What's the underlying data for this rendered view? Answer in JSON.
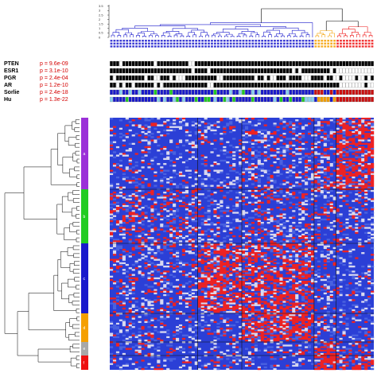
{
  "top_axis": {
    "ticks": [
      "0",
      "0.5",
      "1",
      "1.5",
      "2",
      "2.5",
      "3",
      "3.5"
    ]
  },
  "tracks": [
    {
      "name": "PTEN",
      "p": "p = 9.6e-09"
    },
    {
      "name": "ESR1",
      "p": "p = 3.1e-10"
    },
    {
      "name": "PGR",
      "p": "p = 2.4e-04"
    },
    {
      "name": "AR",
      "p": "p = 1.2e-10"
    },
    {
      "name": "Sorlie",
      "p": "p = 2.4e-18"
    },
    {
      "name": "Hu",
      "p": "p = 1.3e-22"
    }
  ],
  "gene_clusters": [
    {
      "label": "a",
      "color": "#9b30d8"
    },
    {
      "label": "b",
      "color": "#22cc22"
    },
    {
      "label": "c",
      "color": "#1a1acc"
    },
    {
      "label": "d",
      "color": "#f5a000"
    },
    {
      "label": "e",
      "color": "#a8a8a8"
    },
    {
      "label": "f",
      "color": "#ee1111"
    }
  ],
  "sample_clusters": [
    {
      "color": "#1a1acc"
    },
    {
      "color": "#f5a000"
    },
    {
      "color": "#ee1111"
    }
  ],
  "colors": {
    "heat_low": "#2b3fd6",
    "heat_high": "#ee2222",
    "dendrogram": "#000000",
    "pvalue": "#d40000"
  }
}
